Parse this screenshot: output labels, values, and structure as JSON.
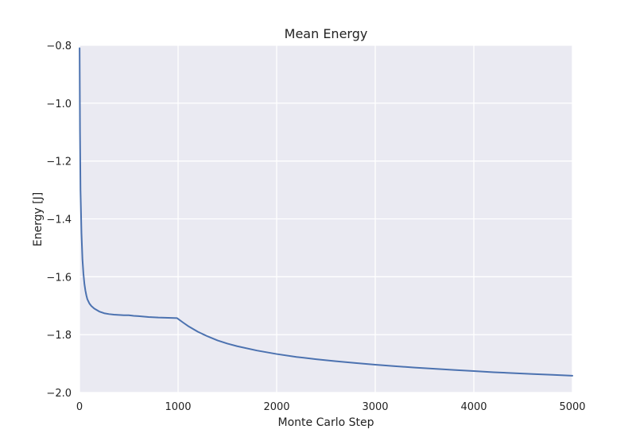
{
  "chart_data": {
    "type": "line",
    "title": "Mean Energy",
    "xlabel": "Monte Carlo Step",
    "ylabel": "Energy [J]",
    "xlim": [
      0,
      5000
    ],
    "ylim": [
      -2.0,
      -0.8
    ],
    "xticks": [
      0,
      1000,
      2000,
      3000,
      4000,
      5000
    ],
    "xtick_labels": [
      "0",
      "1000",
      "2000",
      "3000",
      "4000",
      "5000"
    ],
    "yticks": [
      -2.0,
      -1.8,
      -1.6,
      -1.4,
      -1.2,
      -1.0,
      -0.8
    ],
    "ytick_labels": [
      "−2.0",
      "−1.8",
      "−1.6",
      "−1.4",
      "−1.2",
      "−1.0",
      "−0.8"
    ],
    "grid": true,
    "background_color": "#eaeaf2",
    "line_color": "#4c72b0",
    "series": [
      {
        "x": [
          1,
          5,
          10,
          20,
          30,
          40,
          50,
          60,
          70,
          80,
          100,
          120,
          150,
          200,
          250,
          300,
          350,
          400,
          450,
          500,
          550,
          600,
          700,
          800,
          900,
          990,
          1050,
          1100,
          1200,
          1300,
          1400,
          1500,
          1600,
          1800,
          2000,
          2200,
          2400,
          2600,
          2800,
          3000,
          3200,
          3400,
          3600,
          3800,
          4000,
          4200,
          4400,
          4600,
          4800,
          5000
        ],
        "y": [
          -0.81,
          -1.1,
          -1.3,
          -1.45,
          -1.54,
          -1.59,
          -1.625,
          -1.648,
          -1.665,
          -1.678,
          -1.692,
          -1.701,
          -1.71,
          -1.72,
          -1.726,
          -1.729,
          -1.731,
          -1.732,
          -1.733,
          -1.733,
          -1.735,
          -1.736,
          -1.739,
          -1.741,
          -1.742,
          -1.743,
          -1.758,
          -1.77,
          -1.79,
          -1.806,
          -1.82,
          -1.831,
          -1.84,
          -1.855,
          -1.867,
          -1.877,
          -1.885,
          -1.892,
          -1.898,
          -1.904,
          -1.909,
          -1.914,
          -1.918,
          -1.922,
          -1.926,
          -1.93,
          -1.933,
          -1.936,
          -1.939,
          -1.942
        ]
      }
    ]
  }
}
